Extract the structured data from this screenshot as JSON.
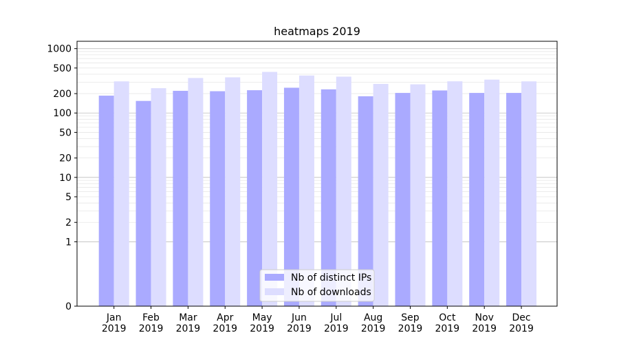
{
  "chart_data": {
    "type": "bar",
    "title": "heatmaps 2019",
    "xlabel": "",
    "ylabel": "",
    "yscale": "symlog",
    "ylim": [
      0,
      1300
    ],
    "yticks": [
      0,
      1,
      2,
      5,
      10,
      20,
      50,
      100,
      200,
      500,
      1000
    ],
    "categories": [
      "Jan\n2019",
      "Feb\n2019",
      "Mar\n2019",
      "Apr\n2019",
      "May\n2019",
      "Jun\n2019",
      "Jul\n2019",
      "Aug\n2019",
      "Sep\n2019",
      "Oct\n2019",
      "Nov\n2019",
      "Dec\n2019"
    ],
    "series": [
      {
        "name": "Nb of distinct IPs",
        "color": "#aaaaff",
        "values": [
          186,
          154,
          221,
          218,
          226,
          247,
          233,
          182,
          205,
          224,
          205,
          205
        ]
      },
      {
        "name": "Nb of downloads",
        "color": "#ddddff",
        "values": [
          310,
          243,
          350,
          358,
          435,
          382,
          367,
          283,
          279,
          311,
          330,
          310
        ]
      }
    ],
    "grid": true,
    "legend_position": "bottom-center"
  }
}
